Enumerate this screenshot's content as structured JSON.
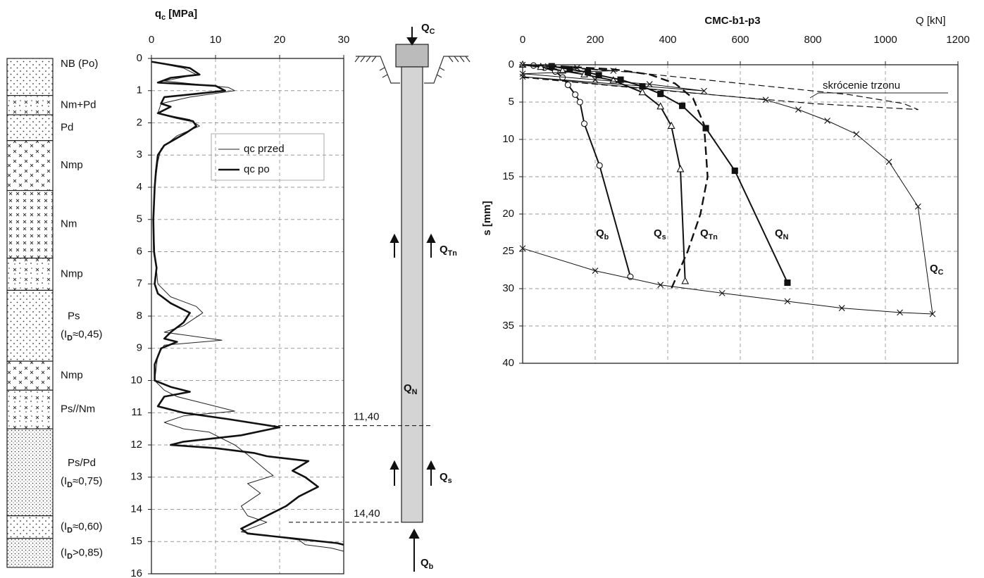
{
  "soil": {
    "layers": [
      {
        "label": [
          "NB (Po)"
        ],
        "bottom": 1.15,
        "pattern": "dots"
      },
      {
        "label": [
          "Nm+Pd"
        ],
        "bottom": 1.75,
        "pattern": "mixed"
      },
      {
        "label": [
          "Pd"
        ],
        "bottom": 2.55,
        "pattern": "dots"
      },
      {
        "label": [
          "Nmp"
        ],
        "bottom": 4.1,
        "pattern": "crosses"
      },
      {
        "label": [
          "Nm"
        ],
        "bottom": 6.2,
        "pattern": "gridcross"
      },
      {
        "label": [
          "Nmp"
        ],
        "bottom": 7.2,
        "pattern": "mixed"
      },
      {
        "label": [
          "Ps"
        ],
        "sublabel": [
          "(I",
          "D",
          "≈0,45)"
        ],
        "bottom": 9.4,
        "pattern": "dots"
      },
      {
        "label": [
          "Nmp"
        ],
        "bottom": 10.3,
        "pattern": "crosses"
      },
      {
        "label": [
          "Ps//Nm"
        ],
        "bottom": 11.5,
        "pattern": "mixed"
      },
      {
        "label": [
          "Ps/Pd"
        ],
        "sublabel": [
          "(I",
          "D",
          "≈0,75)"
        ],
        "bottom": 14.2,
        "pattern": "dense"
      },
      {
        "label": [
          "(I",
          "D",
          "≈0,60)"
        ],
        "bottom": 14.9,
        "pattern": "dots"
      },
      {
        "label": [
          "(I",
          "D",
          ">0,85)"
        ],
        "bottom": 15.8,
        "pattern": "dense"
      }
    ]
  },
  "cpt": {
    "title": [
      "q",
      "c",
      " [MPa]"
    ],
    "xlim": [
      0,
      30
    ],
    "xticks": [
      0,
      10,
      20,
      30
    ],
    "ylim": [
      0,
      16
    ],
    "yticks": [
      0,
      1,
      2,
      3,
      4,
      5,
      6,
      7,
      8,
      9,
      10,
      11,
      12,
      13,
      14,
      15,
      16
    ],
    "grid": true,
    "series": [
      {
        "name": "qc przed",
        "color": "#222",
        "width": 1,
        "depth": [
          0.1,
          0.3,
          0.5,
          0.7,
          0.9,
          1.0,
          1.2,
          1.4,
          1.7,
          1.9,
          2.1,
          2.4,
          2.8,
          3.2,
          4.0,
          5.0,
          6.0,
          7.0,
          7.4,
          7.7,
          7.9,
          8.3,
          8.5,
          8.75,
          8.9,
          9.2,
          10.0,
          10.3,
          10.5,
          10.7,
          10.95,
          11.1,
          11.3,
          11.5,
          11.6,
          11.8,
          12.0,
          12.3,
          12.8,
          12.95,
          13.2,
          13.5,
          13.9,
          14.2,
          14.4,
          14.7,
          14.95,
          15.1,
          15.2,
          15.3
        ],
        "qc": [
          0,
          5,
          7,
          2,
          12,
          13,
          6,
          1.5,
          1,
          6,
          7.5,
          4,
          1.5,
          1,
          0.5,
          0.3,
          0.5,
          1,
          3,
          7,
          8,
          5,
          2,
          11,
          2,
          1,
          0.5,
          2,
          4,
          8,
          13,
          5,
          2,
          5,
          9,
          11,
          13,
          15,
          18,
          19,
          15,
          17,
          14,
          15,
          18,
          14,
          23,
          24,
          28,
          30
        ]
      },
      {
        "name": "qc po",
        "color": "#111",
        "width": 2.6,
        "depth": [
          0.1,
          0.3,
          0.5,
          0.6,
          0.75,
          0.85,
          1.0,
          1.1,
          1.2,
          1.4,
          1.5,
          1.7,
          1.85,
          1.95,
          2.1,
          2.3,
          2.7,
          3.0,
          3.5,
          4.0,
          5.0,
          6.0,
          6.5,
          7.0,
          7.3,
          7.6,
          7.9,
          8.2,
          8.5,
          8.7,
          8.8,
          9.0,
          9.5,
          10.0,
          10.2,
          10.35,
          10.5,
          10.8,
          11.0,
          11.2,
          11.45,
          11.7,
          11.9,
          12.0,
          12.1,
          12.25,
          12.35,
          12.5,
          12.8,
          13.0,
          13.3,
          13.6,
          13.9,
          14.2,
          14.4,
          14.6,
          14.75,
          14.9,
          15.05,
          15.1
        ],
        "qc": [
          0,
          6,
          7.5,
          3,
          1,
          10,
          11.5,
          7,
          2,
          1.5,
          3,
          1,
          4,
          6.5,
          7,
          5.5,
          2,
          1,
          0.7,
          0.5,
          0.3,
          0.4,
          0.8,
          0.5,
          1,
          3,
          6,
          5,
          3,
          2,
          4,
          1.5,
          0.5,
          0.5,
          3,
          6,
          2,
          1,
          5,
          12,
          20,
          14,
          5,
          3,
          10,
          16,
          18,
          24.5,
          22,
          24,
          26,
          23,
          21,
          18,
          16,
          14,
          15,
          22,
          29,
          30
        ]
      }
    ]
  },
  "pile": {
    "loads": [
      [
        "Q",
        "C"
      ],
      [
        "Q",
        "Tn"
      ],
      [
        "Q",
        "N"
      ],
      [
        "Q",
        "s"
      ],
      [
        "Q",
        "b"
      ]
    ],
    "levels": [
      {
        "value": 11.4,
        "label": "11,40"
      },
      {
        "value": 14.4,
        "label": "14,40"
      }
    ]
  },
  "chart_data": {
    "type": "line",
    "title": "CMC-b1-p3",
    "xlabel": "Q [kN]",
    "ylabel": "s [mm]",
    "xlim": [
      0,
      1200
    ],
    "xticks": [
      0,
      200,
      400,
      600,
      800,
      1000,
      1200
    ],
    "ylim": [
      0,
      40
    ],
    "yticks": [
      0,
      5,
      10,
      15,
      20,
      25,
      30,
      35,
      40
    ],
    "y_inverted": true,
    "grid": true,
    "series": [
      {
        "label": [
          "Q",
          "b"
        ],
        "marker": "circle",
        "width": 2,
        "dash": false,
        "color": "#111",
        "x": [
          30,
          60,
          90,
          110,
          125,
          145,
          158,
          170,
          212,
          297
        ],
        "values": [
          0.1,
          0.4,
          0.9,
          1.7,
          2.7,
          4,
          5,
          7.9,
          13.5,
          28.4
        ]
      },
      {
        "label": [
          "Q",
          "s"
        ],
        "marker": "triangle",
        "width": 2,
        "dash": false,
        "color": "#111",
        "x": [
          0,
          50,
          110,
          170,
          250,
          330,
          380,
          410,
          435,
          448
        ],
        "values": [
          0,
          0.3,
          0.8,
          1.3,
          2.1,
          3.7,
          5.6,
          8.2,
          14,
          29
        ]
      },
      {
        "label": [
          "Q",
          "Tn"
        ],
        "marker": "none",
        "width": 2.4,
        "dash": true,
        "color": "#111",
        "x": [
          0,
          100,
          250,
          350,
          420,
          470,
          500,
          510,
          490,
          455,
          410
        ],
        "values": [
          0,
          0.2,
          0.6,
          1.3,
          2.5,
          4.5,
          8,
          15,
          20,
          25,
          30
        ]
      },
      {
        "label": [
          "Q",
          "N"
        ],
        "marker": "square",
        "width": 2,
        "dash": false,
        "color": "#111",
        "x": [
          80,
          130,
          180,
          210,
          270,
          330,
          380,
          440,
          505,
          585,
          730
        ],
        "values": [
          0.2,
          0.6,
          1,
          1.4,
          2,
          2.9,
          3.9,
          5.5,
          8.5,
          14.2,
          29.2
        ]
      },
      {
        "label": [
          "Q",
          "C"
        ],
        "marker": "cross",
        "width": 1,
        "dash": false,
        "color": "#111",
        "x": [
          0,
          70,
          150,
          250,
          0,
          200,
          350,
          500,
          0,
          670,
          760,
          840,
          920,
          1010,
          1090,
          1130,
          1040,
          880,
          730,
          550,
          380,
          200,
          0
        ],
        "values": [
          0,
          0.2,
          0.4,
          0.8,
          1.2,
          2.0,
          2.6,
          3.5,
          1.6,
          4.7,
          6,
          7.5,
          9.3,
          13,
          19,
          33.4,
          33.2,
          32.6,
          31.7,
          30.6,
          29.5,
          27.6,
          24.6
        ]
      },
      {
        "name": "skrócenie trzonu",
        "marker": "none",
        "width": 1.2,
        "dash": true,
        "color": "#111",
        "x": [
          0,
          300,
          600,
          900,
          1050,
          1090,
          800,
          400,
          0
        ],
        "values": [
          0,
          1,
          2.5,
          4,
          5.2,
          6,
          5.2,
          3.5,
          1.7
        ]
      }
    ]
  }
}
